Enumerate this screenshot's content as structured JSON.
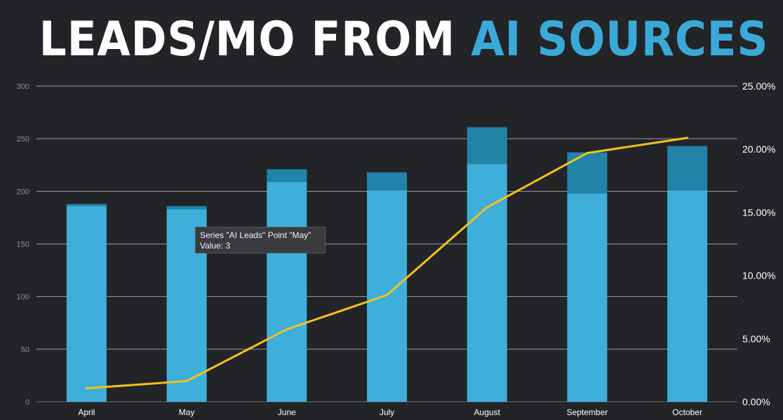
{
  "title": {
    "part1": "LEADS/MO FROM ",
    "part2": "AI SOURCES"
  },
  "colors": {
    "background": "#232428",
    "title_primary": "#ffffff",
    "title_accent": "#3aa9d8",
    "bar_main": "#3eaedb",
    "bar_top": "#2283a8",
    "line": "#f2c21b",
    "grid": "#aeb0b5"
  },
  "tooltip": {
    "line1": "Series \"AI Leads\" Point \"May\"",
    "line2": "Value: 3"
  },
  "chart_data": {
    "type": "bar",
    "stacked": true,
    "categories": [
      "April",
      "May",
      "June",
      "July",
      "August",
      "September",
      "October"
    ],
    "series": [
      {
        "values": [
          186,
          183,
          209,
          201,
          226,
          198,
          201
        ]
      },
      {
        "name": "AI Leads",
        "values": [
          2,
          3,
          12,
          17,
          35,
          39,
          42
        ]
      },
      {
        "type": "line",
        "axis": "right",
        "values": [
          0.0107,
          0.0164,
          0.0574,
          0.0845,
          0.154,
          0.197,
          0.209
        ]
      }
    ],
    "y_left": {
      "min": 0,
      "max": 300,
      "ticks": [
        0,
        50,
        100,
        150,
        200,
        250,
        300
      ]
    },
    "y_right": {
      "min": 0,
      "max": 0.25,
      "ticks": [
        "0.00%",
        "5.00%",
        "10.00%",
        "15.00%",
        "20.00%",
        "25.00%"
      ]
    },
    "grid": true,
    "legend": "none"
  }
}
